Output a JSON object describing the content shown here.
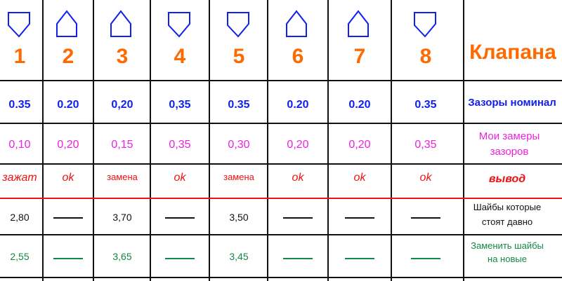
{
  "valves": [
    {
      "number": "1",
      "shape": "pentagon-down",
      "nominal": "0.35",
      "measured": "0,10",
      "verdict": "зажат",
      "old_shim": "2,80",
      "new_shim": "2,55"
    },
    {
      "number": "2",
      "shape": "house-up",
      "nominal": "0.20",
      "measured": "0,20",
      "verdict": "ok",
      "old_shim": "",
      "new_shim": ""
    },
    {
      "number": "3",
      "shape": "house-up",
      "nominal": "0,20",
      "measured": "0,15",
      "verdict": "замена",
      "old_shim": "3,70",
      "new_shim": "3,65"
    },
    {
      "number": "4",
      "shape": "pentagon-down",
      "nominal": "0,35",
      "measured": "0,35",
      "verdict": "ok",
      "old_shim": "",
      "new_shim": ""
    },
    {
      "number": "5",
      "shape": "pentagon-down",
      "nominal": "0.35",
      "measured": "0,30",
      "verdict": "замена",
      "old_shim": "3,50",
      "new_shim": "3,45"
    },
    {
      "number": "6",
      "shape": "house-up",
      "nominal": "0.20",
      "measured": "0,20",
      "verdict": "ok",
      "old_shim": "",
      "new_shim": ""
    },
    {
      "number": "7",
      "shape": "house-up",
      "nominal": "0.20",
      "measured": "0,20",
      "verdict": "ok",
      "old_shim": "",
      "new_shim": ""
    },
    {
      "number": "8",
      "shape": "pentagon-down",
      "nominal": "0.35",
      "measured": "0,35",
      "verdict": "ok",
      "old_shim": "",
      "new_shim": ""
    }
  ],
  "labels": {
    "header": "Клапана",
    "nominal": "Зазоры номинал",
    "measured_1": "Мои замеры",
    "measured_2": "зазоров",
    "verdict": "вывод",
    "old_1": "Шайбы которые",
    "old_2": "стоят давно",
    "new_1": "Заменить шайбы",
    "new_2": "на новые"
  },
  "colors": {
    "number": "#ff6a00",
    "nominal": "#1020f0",
    "measured": "#f020e0",
    "verdict": "#f01010",
    "new": "#118844"
  }
}
